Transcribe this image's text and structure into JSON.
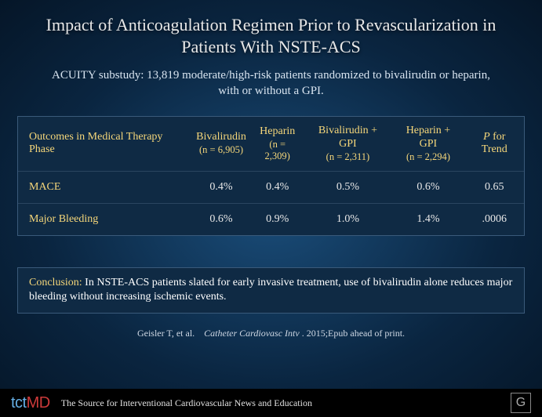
{
  "title": "Impact of Anticoagulation Regimen Prior to Revascularization in Patients With NSTE-ACS",
  "subtitle": "ACUITY substudy: 13,819 moderate/high-risk patients randomized to bivalirudin or heparin, with or without a GPI.",
  "table": {
    "header": {
      "rowhead": "Outcomes in Medical Therapy Phase",
      "cols": [
        {
          "label": "Bivalirudin",
          "sub": "(n = 6,905)"
        },
        {
          "label": "Heparin",
          "sub": "(n = 2,309)"
        },
        {
          "label": "Bivalirudin + GPI",
          "sub": "(n = 2,311)"
        },
        {
          "label": "Heparin + GPI",
          "sub": "(n = 2,294)"
        }
      ],
      "pcol_prefix": "P",
      "pcol_rest": " for Trend"
    },
    "rows": [
      {
        "label": "MACE",
        "vals": [
          "0.4%",
          "0.4%",
          "0.5%",
          "0.6%"
        ],
        "p": "0.65"
      },
      {
        "label": "Major Bleeding",
        "vals": [
          "0.6%",
          "0.9%",
          "1.0%",
          "1.4%"
        ],
        "p": ".0006"
      }
    ]
  },
  "conclusion": {
    "label": "Conclusion:",
    "text": "    In NSTE-ACS patients slated for early invasive treatment, use of bivalirudin alone reduces major bleeding without increasing ischemic events."
  },
  "citation": {
    "authors": "Geisler T, et al.",
    "journal": "Catheter Cardiovasc Intv",
    "rest": ". 2015;Epub ahead of print."
  },
  "footer": {
    "logo_a": "tct",
    "logo_b": "MD",
    "text": "The Source for Interventional Cardiovascular News and Education",
    "crf": "G"
  },
  "colors": {
    "accent": "#f6d77a",
    "panel_bg": "#0f2a44",
    "panel_border": "#3a5a7a"
  }
}
